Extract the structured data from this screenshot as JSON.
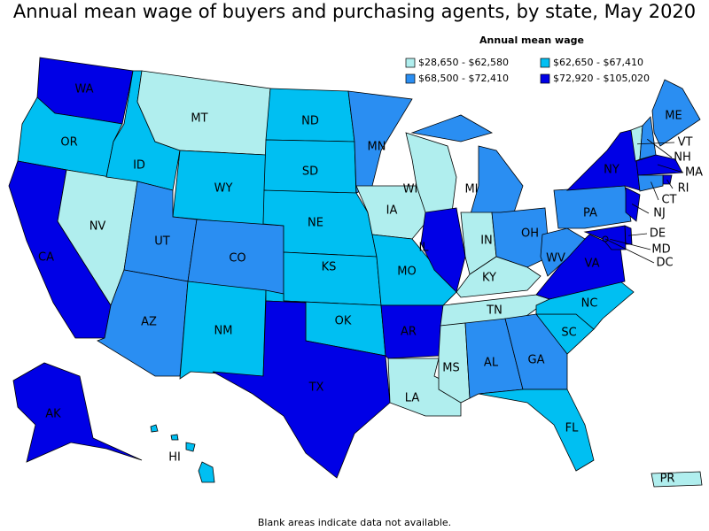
{
  "title": "Annual mean wage of buyers and purchasing agents, by state, May 2020",
  "legend": {
    "title": "Annual mean wage",
    "items": [
      {
        "label": "$28,650 - $62,580",
        "color": "#b0eeee"
      },
      {
        "label": "$62,650 - $67,410",
        "color": "#00bff2"
      },
      {
        "label": "$68,500 - $72,410",
        "color": "#2a8ef2"
      },
      {
        "label": "$72,920 - $105,020",
        "color": "#0000e6"
      }
    ]
  },
  "states": [
    {
      "label": "WA",
      "color": "#0000e6"
    },
    {
      "label": "OR",
      "color": "#00bff2"
    },
    {
      "label": "CA",
      "color": "#0000e6"
    },
    {
      "label": "NV",
      "color": "#b0eeee"
    },
    {
      "label": "ID",
      "color": "#00bff2"
    },
    {
      "label": "MT",
      "color": "#b0eeee"
    },
    {
      "label": "WY",
      "color": "#00bff2"
    },
    {
      "label": "UT",
      "color": "#2a8ef2"
    },
    {
      "label": "AZ",
      "color": "#2a8ef2"
    },
    {
      "label": "CO",
      "color": "#2a8ef2"
    },
    {
      "label": "NM",
      "color": "#00bff2"
    },
    {
      "label": "ND",
      "color": "#00bff2"
    },
    {
      "label": "SD",
      "color": "#00bff2"
    },
    {
      "label": "NE",
      "color": "#00bff2"
    },
    {
      "label": "KS",
      "color": "#00bff2"
    },
    {
      "label": "OK",
      "color": "#00bff2"
    },
    {
      "label": "TX",
      "color": "#0000e6"
    },
    {
      "label": "MN",
      "color": "#2a8ef2"
    },
    {
      "label": "IA",
      "color": "#b0eeee"
    },
    {
      "label": "MO",
      "color": "#00bff2"
    },
    {
      "label": "AR",
      "color": "#0000e6"
    },
    {
      "label": "LA",
      "color": "#b0eeee"
    },
    {
      "label": "WI",
      "color": "#b0eeee"
    },
    {
      "label": "IL",
      "color": "#0000e6"
    },
    {
      "label": "MI",
      "color": "#2a8ef2"
    },
    {
      "label": "IN",
      "color": "#b0eeee"
    },
    {
      "label": "OH",
      "color": "#2a8ef2"
    },
    {
      "label": "KY",
      "color": "#b0eeee"
    },
    {
      "label": "TN",
      "color": "#b0eeee"
    },
    {
      "label": "MS",
      "color": "#b0eeee"
    },
    {
      "label": "AL",
      "color": "#2a8ef2"
    },
    {
      "label": "GA",
      "color": "#2a8ef2"
    },
    {
      "label": "FL",
      "color": "#00bff2"
    },
    {
      "label": "SC",
      "color": "#00bff2"
    },
    {
      "label": "NC",
      "color": "#00bff2"
    },
    {
      "label": "VA",
      "color": "#0000e6"
    },
    {
      "label": "WV",
      "color": "#2a8ef2"
    },
    {
      "label": "PA",
      "color": "#2a8ef2"
    },
    {
      "label": "NY",
      "color": "#0000e6"
    },
    {
      "label": "VT",
      "color": "#b0eeee"
    },
    {
      "label": "NH",
      "color": "#2a8ef2"
    },
    {
      "label": "ME",
      "color": "#2a8ef2"
    },
    {
      "label": "MA",
      "color": "#0000e6"
    },
    {
      "label": "RI",
      "color": "#0000e6"
    },
    {
      "label": "CT",
      "color": "#2a8ef2"
    },
    {
      "label": "NJ",
      "color": "#0000e6"
    },
    {
      "label": "DE",
      "color": "#0000e6"
    },
    {
      "label": "MD",
      "color": "#0000e6"
    },
    {
      "label": "DC",
      "color": "#0000e6"
    },
    {
      "label": "AK",
      "color": "#0000e6"
    },
    {
      "label": "HI",
      "color": "#00bff2"
    },
    {
      "label": "PR",
      "color": "#b0eeee"
    }
  ],
  "footnote": "Blank areas indicate data not available."
}
